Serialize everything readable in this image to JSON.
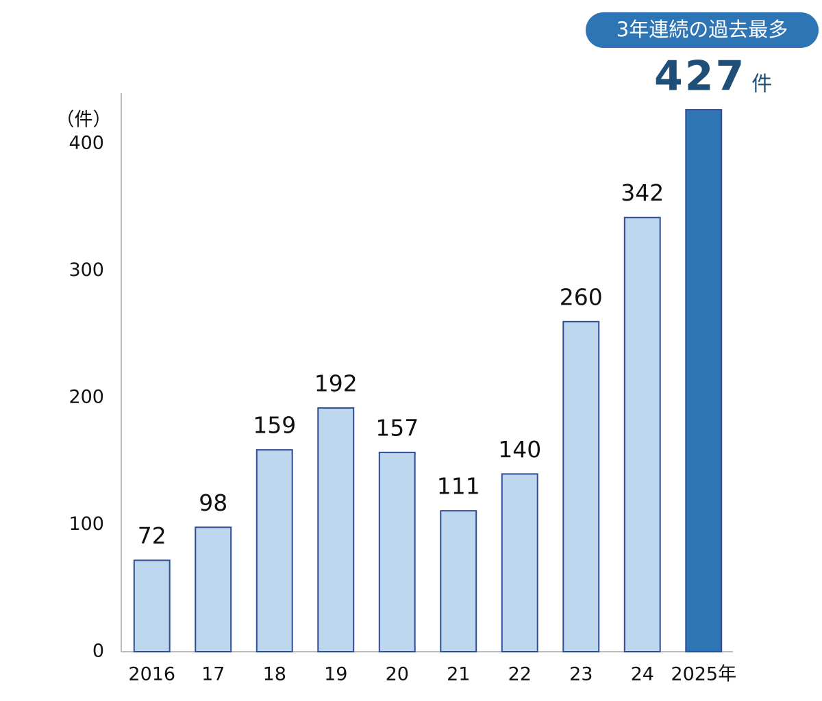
{
  "chart_data": {
    "type": "bar",
    "y_axis_label": "（件）",
    "categories": [
      "2016",
      "17",
      "18",
      "19",
      "20",
      "21",
      "22",
      "23",
      "24",
      "2025年"
    ],
    "values": [
      72,
      98,
      159,
      192,
      157,
      111,
      140,
      260,
      342,
      427
    ],
    "colors": [
      "#bdd7ee",
      "#bdd7ee",
      "#bdd7ee",
      "#bdd7ee",
      "#bdd7ee",
      "#bdd7ee",
      "#bdd7ee",
      "#bdd7ee",
      "#bdd7ee",
      "#2e75b6"
    ],
    "value_unit": "件",
    "annotation": "3年連続の過去最多",
    "ylim": [
      0,
      440
    ],
    "yticks": [
      0,
      100,
      200,
      300,
      400
    ],
    "grid": false
  }
}
